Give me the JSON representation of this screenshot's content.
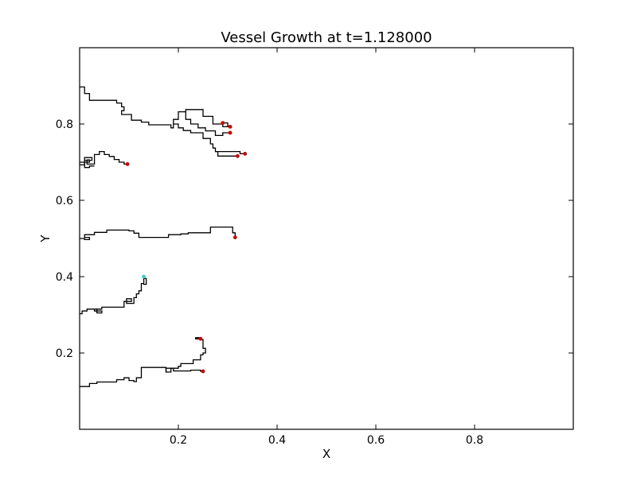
{
  "chart_data": {
    "type": "line",
    "title": "Vessel Growth at t=1.128000",
    "xlabel": "X",
    "ylabel": "Y",
    "xlim": [
      0.0,
      1.0
    ],
    "ylim": [
      0.0,
      1.0
    ],
    "grid": false,
    "legend": "none",
    "xticks": [
      {
        "value": 0.2,
        "label": "0.2"
      },
      {
        "value": 0.4,
        "label": "0.4"
      },
      {
        "value": 0.6,
        "label": "0.6"
      },
      {
        "value": 0.8,
        "label": "0.8"
      }
    ],
    "yticks": [
      {
        "value": 0.2,
        "label": "0.2"
      },
      {
        "value": 0.4,
        "label": "0.4"
      },
      {
        "value": 0.6,
        "label": "0.6"
      },
      {
        "value": 0.8,
        "label": "0.8"
      }
    ],
    "line_color": "#000000",
    "tip_colors": {
      "red": "#cc0000",
      "cyan": "#3fc9c9"
    },
    "series": [
      {
        "points": [
          [
            0.0,
            0.897
          ],
          [
            0.01,
            0.897
          ],
          [
            0.01,
            0.88
          ],
          [
            0.02,
            0.88
          ],
          [
            0.02,
            0.862
          ],
          [
            0.075,
            0.862
          ],
          [
            0.075,
            0.855
          ],
          [
            0.085,
            0.855
          ],
          [
            0.085,
            0.845
          ],
          [
            0.09,
            0.845
          ],
          [
            0.09,
            0.835
          ],
          [
            0.085,
            0.835
          ],
          [
            0.085,
            0.825
          ],
          [
            0.105,
            0.825
          ],
          [
            0.105,
            0.81
          ],
          [
            0.125,
            0.81
          ],
          [
            0.125,
            0.805
          ],
          [
            0.14,
            0.805
          ],
          [
            0.14,
            0.798
          ],
          [
            0.185,
            0.798
          ],
          [
            0.185,
            0.79
          ],
          [
            0.19,
            0.79
          ],
          [
            0.19,
            0.8
          ],
          [
            0.2,
            0.8
          ],
          [
            0.2,
            0.79
          ],
          [
            0.21,
            0.79
          ],
          [
            0.21,
            0.783
          ],
          [
            0.225,
            0.783
          ],
          [
            0.225,
            0.777
          ],
          [
            0.25,
            0.777
          ],
          [
            0.25,
            0.762
          ],
          [
            0.265,
            0.762
          ],
          [
            0.265,
            0.748
          ],
          [
            0.27,
            0.748
          ],
          [
            0.27,
            0.737
          ],
          [
            0.275,
            0.737
          ],
          [
            0.275,
            0.728
          ],
          [
            0.325,
            0.728
          ],
          [
            0.325,
            0.722
          ],
          [
            0.335,
            0.722
          ]
        ]
      },
      {
        "points": [
          [
            0.19,
            0.8
          ],
          [
            0.19,
            0.812
          ],
          [
            0.2,
            0.812
          ],
          [
            0.2,
            0.832
          ],
          [
            0.215,
            0.832
          ],
          [
            0.215,
            0.838
          ],
          [
            0.25,
            0.838
          ],
          [
            0.25,
            0.82
          ],
          [
            0.27,
            0.82
          ],
          [
            0.27,
            0.8
          ],
          [
            0.29,
            0.8
          ],
          [
            0.29,
            0.793
          ],
          [
            0.305,
            0.793
          ]
        ]
      },
      {
        "points": [
          [
            0.215,
            0.832
          ],
          [
            0.215,
            0.812
          ],
          [
            0.225,
            0.812
          ],
          [
            0.225,
            0.8
          ],
          [
            0.24,
            0.8
          ],
          [
            0.24,
            0.79
          ],
          [
            0.255,
            0.79
          ],
          [
            0.255,
            0.782
          ],
          [
            0.275,
            0.782
          ],
          [
            0.275,
            0.77
          ],
          [
            0.29,
            0.77
          ],
          [
            0.29,
            0.777
          ],
          [
            0.305,
            0.777
          ]
        ]
      },
      {
        "points": [
          [
            0.29,
            0.803
          ],
          [
            0.3,
            0.803
          ],
          [
            0.3,
            0.795
          ],
          [
            0.305,
            0.795
          ]
        ]
      },
      {
        "points": [
          [
            0.275,
            0.728
          ],
          [
            0.28,
            0.728
          ],
          [
            0.28,
            0.716
          ],
          [
            0.32,
            0.716
          ]
        ]
      },
      {
        "points": [
          [
            0.0,
            0.693
          ],
          [
            0.01,
            0.693
          ],
          [
            0.01,
            0.7
          ],
          [
            0.02,
            0.7
          ],
          [
            0.02,
            0.706
          ],
          [
            0.015,
            0.706
          ],
          [
            0.015,
            0.695
          ],
          [
            0.03,
            0.695
          ],
          [
            0.03,
            0.72
          ],
          [
            0.04,
            0.72
          ],
          [
            0.04,
            0.728
          ],
          [
            0.05,
            0.728
          ],
          [
            0.05,
            0.72
          ],
          [
            0.06,
            0.72
          ],
          [
            0.06,
            0.715
          ],
          [
            0.07,
            0.715
          ],
          [
            0.07,
            0.707
          ],
          [
            0.08,
            0.707
          ],
          [
            0.08,
            0.7
          ],
          [
            0.09,
            0.7
          ],
          [
            0.09,
            0.695
          ],
          [
            0.097,
            0.695
          ]
        ]
      },
      {
        "points": [
          [
            0.0,
            0.7
          ],
          [
            0.01,
            0.7
          ],
          [
            0.01,
            0.705
          ],
          [
            0.025,
            0.705
          ],
          [
            0.025,
            0.712
          ],
          [
            0.01,
            0.712
          ],
          [
            0.01,
            0.686
          ],
          [
            0.02,
            0.686
          ],
          [
            0.02,
            0.69
          ],
          [
            0.03,
            0.69
          ]
        ]
      },
      {
        "points": [
          [
            0.0,
            0.5
          ],
          [
            0.01,
            0.5
          ],
          [
            0.01,
            0.497
          ],
          [
            0.02,
            0.497
          ],
          [
            0.02,
            0.503
          ],
          [
            0.01,
            0.503
          ],
          [
            0.01,
            0.51
          ],
          [
            0.03,
            0.51
          ],
          [
            0.03,
            0.516
          ],
          [
            0.055,
            0.516
          ],
          [
            0.055,
            0.522
          ],
          [
            0.1,
            0.522
          ],
          [
            0.1,
            0.52
          ],
          [
            0.11,
            0.52
          ],
          [
            0.11,
            0.514
          ],
          [
            0.12,
            0.514
          ],
          [
            0.12,
            0.503
          ],
          [
            0.18,
            0.503
          ],
          [
            0.18,
            0.51
          ],
          [
            0.205,
            0.51
          ],
          [
            0.205,
            0.512
          ],
          [
            0.22,
            0.512
          ],
          [
            0.22,
            0.515
          ],
          [
            0.265,
            0.515
          ],
          [
            0.265,
            0.53
          ],
          [
            0.31,
            0.53
          ],
          [
            0.31,
            0.515
          ],
          [
            0.315,
            0.515
          ],
          [
            0.315,
            0.503
          ]
        ]
      },
      {
        "points": [
          [
            0.0,
            0.303
          ],
          [
            0.005,
            0.303
          ],
          [
            0.005,
            0.31
          ],
          [
            0.015,
            0.31
          ],
          [
            0.015,
            0.315
          ],
          [
            0.035,
            0.315
          ],
          [
            0.035,
            0.305
          ],
          [
            0.045,
            0.305
          ],
          [
            0.045,
            0.31
          ],
          [
            0.03,
            0.31
          ],
          [
            0.03,
            0.315
          ],
          [
            0.045,
            0.315
          ],
          [
            0.045,
            0.32
          ],
          [
            0.09,
            0.32
          ],
          [
            0.09,
            0.335
          ],
          [
            0.105,
            0.335
          ],
          [
            0.105,
            0.342
          ],
          [
            0.095,
            0.342
          ],
          [
            0.095,
            0.33
          ],
          [
            0.11,
            0.33
          ],
          [
            0.11,
            0.345
          ],
          [
            0.115,
            0.345
          ],
          [
            0.115,
            0.355
          ],
          [
            0.12,
            0.355
          ],
          [
            0.12,
            0.363
          ],
          [
            0.125,
            0.363
          ],
          [
            0.125,
            0.382
          ],
          [
            0.13,
            0.382
          ],
          [
            0.13,
            0.395
          ],
          [
            0.135,
            0.395
          ],
          [
            0.135,
            0.38
          ],
          [
            0.13,
            0.38
          ],
          [
            0.13,
            0.4
          ]
        ]
      },
      {
        "points": [
          [
            0.0,
            0.112
          ],
          [
            0.02,
            0.112
          ],
          [
            0.02,
            0.12
          ],
          [
            0.035,
            0.12
          ],
          [
            0.035,
            0.124
          ],
          [
            0.075,
            0.124
          ],
          [
            0.075,
            0.13
          ],
          [
            0.09,
            0.13
          ],
          [
            0.09,
            0.135
          ],
          [
            0.1,
            0.135
          ],
          [
            0.1,
            0.128
          ],
          [
            0.11,
            0.128
          ],
          [
            0.11,
            0.125
          ],
          [
            0.115,
            0.125
          ],
          [
            0.115,
            0.135
          ],
          [
            0.125,
            0.135
          ],
          [
            0.125,
            0.162
          ],
          [
            0.175,
            0.162
          ],
          [
            0.175,
            0.15
          ],
          [
            0.185,
            0.15
          ],
          [
            0.185,
            0.16
          ],
          [
            0.2,
            0.16
          ],
          [
            0.2,
            0.165
          ],
          [
            0.205,
            0.165
          ],
          [
            0.205,
            0.172
          ],
          [
            0.23,
            0.172
          ],
          [
            0.23,
            0.182
          ],
          [
            0.245,
            0.182
          ],
          [
            0.245,
            0.195
          ],
          [
            0.25,
            0.195
          ],
          [
            0.25,
            0.2
          ],
          [
            0.255,
            0.2
          ],
          [
            0.255,
            0.212
          ],
          [
            0.25,
            0.212
          ],
          [
            0.25,
            0.235
          ],
          [
            0.245,
            0.235
          ],
          [
            0.245,
            0.24
          ],
          [
            0.235,
            0.24
          ],
          [
            0.235,
            0.237
          ],
          [
            0.245,
            0.237
          ]
        ]
      },
      {
        "points": [
          [
            0.175,
            0.15
          ],
          [
            0.175,
            0.16
          ],
          [
            0.19,
            0.16
          ],
          [
            0.19,
            0.153
          ],
          [
            0.225,
            0.153
          ],
          [
            0.225,
            0.155
          ],
          [
            0.245,
            0.155
          ],
          [
            0.245,
            0.152
          ],
          [
            0.25,
            0.152
          ]
        ]
      }
    ],
    "tips": [
      {
        "x": 0.335,
        "y": 0.722,
        "color": "red"
      },
      {
        "x": 0.305,
        "y": 0.793,
        "color": "red"
      },
      {
        "x": 0.305,
        "y": 0.777,
        "color": "red"
      },
      {
        "x": 0.29,
        "y": 0.803,
        "color": "red"
      },
      {
        "x": 0.32,
        "y": 0.716,
        "color": "red"
      },
      {
        "x": 0.097,
        "y": 0.695,
        "color": "red"
      },
      {
        "x": 0.315,
        "y": 0.503,
        "color": "red"
      },
      {
        "x": 0.13,
        "y": 0.4,
        "color": "cyan"
      },
      {
        "x": 0.245,
        "y": 0.237,
        "color": "red"
      },
      {
        "x": 0.25,
        "y": 0.152,
        "color": "red"
      }
    ]
  }
}
